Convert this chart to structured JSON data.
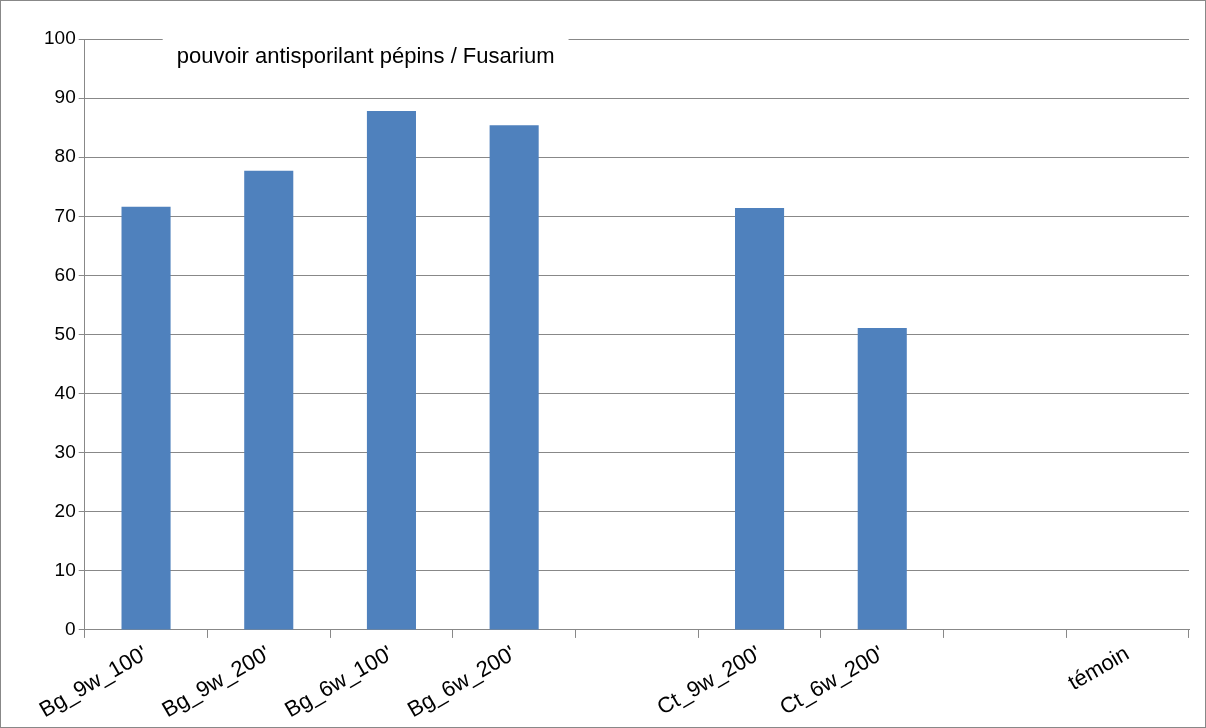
{
  "chart_data": {
    "type": "bar",
    "title": "pouvoir antisporilant pépins / Fusarium",
    "categories": [
      "Bg_9w_100'",
      "Bg_9w_200'",
      "Bg_6w_100'",
      "Bg_6w_200'",
      null,
      "Ct_9w_200'",
      "Ct_6w_200'",
      null,
      "témoin"
    ],
    "values": [
      71.6,
      77.7,
      87.8,
      85.4,
      null,
      71.4,
      51.1,
      null,
      0
    ],
    "color": "#4f81bd",
    "ylim": [
      0,
      100
    ],
    "yticks": [
      0,
      10,
      20,
      30,
      40,
      50,
      60,
      70,
      80,
      90,
      100
    ],
    "grid": "y",
    "legend": false
  }
}
